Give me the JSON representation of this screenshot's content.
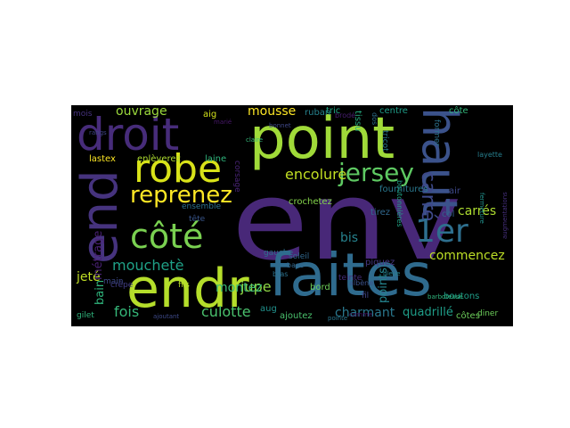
{
  "cloud": {
    "background": "#000000",
    "words": [
      {
        "text": "env",
        "color": "#482878"
      },
      {
        "text": "point",
        "color": "#a0da39"
      },
      {
        "text": "faites",
        "color": "#2f6b8e"
      },
      {
        "text": "endr",
        "color": "#b5de2b"
      },
      {
        "text": "droit",
        "color": "#472c7a"
      },
      {
        "text": "end",
        "color": "#46337e"
      },
      {
        "text": "haut",
        "color": "#3b528b"
      },
      {
        "text": "robe",
        "color": "#d8e219"
      },
      {
        "text": "côté",
        "color": "#7ad151"
      },
      {
        "text": "1er",
        "color": "#2e6f8e"
      },
      {
        "text": "jersey",
        "color": "#5ec962"
      },
      {
        "text": "reprenez",
        "color": "#fde725"
      },
      {
        "text": "carré",
        "color": "#3e4989"
      },
      {
        "text": "encolure",
        "color": "#c2df23"
      },
      {
        "text": "mouchetè",
        "color": "#1fa187"
      },
      {
        "text": "culotte",
        "color": "#4ac16d"
      },
      {
        "text": "commencez",
        "color": "#bddf26"
      },
      {
        "text": "charmant",
        "color": "#2a788e"
      },
      {
        "text": "jupe",
        "color": "#8fd744"
      },
      {
        "text": "fois",
        "color": "#35b779"
      },
      {
        "text": "carrés",
        "color": "#addc30"
      },
      {
        "text": "montez",
        "color": "#3aba76"
      },
      {
        "text": "ouvrage",
        "color": "#9bd93c"
      },
      {
        "text": "mousse",
        "color": "#fde725"
      },
      {
        "text": "bis",
        "color": "#26828e"
      },
      {
        "text": "quadrillé",
        "color": "#1f9e89"
      },
      {
        "text": "points",
        "color": "#25848e"
      },
      {
        "text": "jeté",
        "color": "#c0df25"
      },
      {
        "text": "métrage",
        "color": "#482173"
      },
      {
        "text": "bain",
        "color": "#2fb47c"
      },
      {
        "text": "lastex",
        "color": "#fde725"
      },
      {
        "text": "enlèverez",
        "color": "#addc30"
      },
      {
        "text": "laine",
        "color": "#2fb47c"
      },
      {
        "text": "aig",
        "color": "#d2e21b"
      },
      {
        "text": "crochetez",
        "color": "#84d44b"
      },
      {
        "text": "tissu",
        "color": "#27ad81"
      },
      {
        "text": "tric",
        "color": "#22a884"
      },
      {
        "text": "ruban",
        "color": "#26828e"
      },
      {
        "text": "centre",
        "color": "#1f9e89"
      },
      {
        "text": "côte",
        "color": "#32b67a"
      },
      {
        "text": "fournitures",
        "color": "#2a788e"
      },
      {
        "text": "col",
        "color": "#33638d"
      },
      {
        "text": "air",
        "color": "#3e4989"
      },
      {
        "text": "soleil",
        "color": "#31688e"
      },
      {
        "text": "bord",
        "color": "#6ccd5a"
      },
      {
        "text": "boutons",
        "color": "#1f9e89"
      },
      {
        "text": "côtes",
        "color": "#6ccd5a"
      },
      {
        "text": "piquez",
        "color": "#453781"
      },
      {
        "text": "tirez",
        "color": "#31688e"
      },
      {
        "text": "aug",
        "color": "#21918c"
      },
      {
        "text": "ajoutez",
        "color": "#4ac16d"
      },
      {
        "text": "fils",
        "color": "#b8de29"
      },
      {
        "text": "crêpe",
        "color": "#433e85"
      },
      {
        "text": "ensemble",
        "color": "#2c728e"
      },
      {
        "text": "gauche",
        "color": "#2e6f8e"
      },
      {
        "text": "gilet",
        "color": "#2fb47c"
      },
      {
        "text": "diner",
        "color": "#6ccd5a"
      },
      {
        "text": "fil",
        "color": "#414487"
      },
      {
        "text": "mois",
        "color": "#46327e"
      },
      {
        "text": "corsage",
        "color": "#482475"
      },
      {
        "text": "tête",
        "color": "#39568c"
      },
      {
        "text": "main",
        "color": "#3e4989"
      },
      {
        "text": "teinte",
        "color": "#472d7b"
      },
      {
        "text": "base",
        "color": "#31688e"
      },
      {
        "text": "bras",
        "color": "#2c728e"
      },
      {
        "text": "brodé",
        "color": "#481f70"
      },
      {
        "text": "layette",
        "color": "#277f8e"
      },
      {
        "text": "former",
        "color": "#2c728e"
      },
      {
        "text": "tricot",
        "color": "#287c8e"
      },
      {
        "text": "boutonnières",
        "color": "#20a386"
      },
      {
        "text": "marié",
        "color": "#48186a"
      },
      {
        "text": "dos",
        "color": "#2d708e"
      },
      {
        "text": "claire",
        "color": "#35b779"
      },
      {
        "text": "albène",
        "color": "#3b528b"
      },
      {
        "text": "barboteuse",
        "color": "#2fb47c"
      },
      {
        "text": "augmentations",
        "color": "#46307e"
      },
      {
        "text": "comme",
        "color": "#471063"
      },
      {
        "text": "bleue",
        "color": "#26828e"
      },
      {
        "text": "rangs",
        "color": "#404688"
      },
      {
        "text": "bonnet",
        "color": "#3f4889"
      },
      {
        "text": "fermeture",
        "color": "#21918c"
      },
      {
        "text": "ajoutant",
        "color": "#3e4a89"
      },
      {
        "text": "pointe",
        "color": "#2a768e"
      }
    ]
  }
}
